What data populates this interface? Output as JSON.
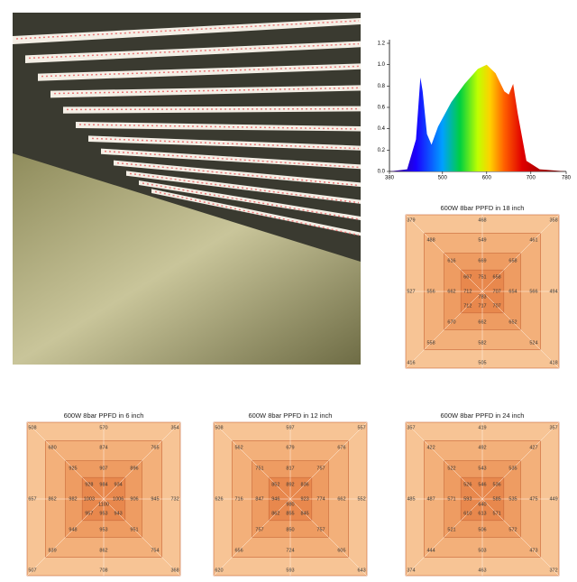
{
  "chart_data": {
    "type": "area",
    "x": [
      380,
      420,
      440,
      450,
      455,
      465,
      475,
      490,
      520,
      550,
      580,
      600,
      620,
      640,
      650,
      660,
      670,
      690,
      720,
      780
    ],
    "values": [
      0,
      0.02,
      0.3,
      0.88,
      0.75,
      0.35,
      0.25,
      0.42,
      0.65,
      0.82,
      0.96,
      1.0,
      0.92,
      0.75,
      0.72,
      0.82,
      0.55,
      0.1,
      0.02,
      0
    ],
    "xlim": [
      380,
      780
    ],
    "ylim": [
      0,
      1.2
    ],
    "xticks": [
      380,
      500,
      600,
      700,
      780
    ],
    "yticks": [
      {
        "value": 0,
        "label": "0.0"
      },
      {
        "value": 0.2,
        "label": "0.2"
      },
      {
        "value": 0.4,
        "label": "0.4"
      },
      {
        "value": 0.6,
        "label": "0.6"
      },
      {
        "value": 0.8,
        "label": "0.8"
      },
      {
        "value": 1,
        "label": "1.0"
      },
      {
        "value": 1.2,
        "label": "1.2"
      }
    ]
  },
  "ppfd_maps": [
    {
      "title": "600W 8bar PPFD in 18 inch",
      "rings": [
        [
          379,
          468,
          358,
          527,
          494,
          416,
          505,
          418
        ],
        [
          488,
          549,
          461,
          556,
          566,
          558,
          582,
          524
        ],
        [
          616,
          669,
          658,
          662,
          654,
          670,
          662,
          652
        ],
        [
          667,
          751,
          658,
          712,
          707,
          712,
          717,
          707
        ]
      ],
      "center": 783
    },
    {
      "title": "600W 8bar PPFD in 6 inch",
      "rings": [
        [
          508,
          570,
          354,
          657,
          732,
          507,
          708,
          368
        ],
        [
          680,
          874,
          765,
          862,
          945,
          839,
          862,
          754
        ],
        [
          925,
          907,
          896,
          982,
          906,
          948,
          953,
          951
        ],
        [
          928,
          984,
          934,
          1003,
          1006,
          957,
          953,
          943
        ]
      ],
      "center": 1100
    },
    {
      "title": "600W 8bar PPFD in 12 inch",
      "rings": [
        [
          508,
          597,
          557,
          626,
          552,
          620,
          593,
          643
        ],
        [
          562,
          679,
          676,
          716,
          662,
          656,
          724,
          605
        ],
        [
          751,
          817,
          757,
          847,
          774,
          757,
          850,
          757
        ],
        [
          852,
          892,
          836,
          946,
          923,
          862,
          855,
          845
        ]
      ],
      "center": 980
    },
    {
      "title": "600W 8bar PPFD in 24 inch",
      "rings": [
        [
          357,
          419,
          357,
          485,
          449,
          374,
          463,
          372
        ],
        [
          422,
          492,
          427,
          487,
          475,
          444,
          503,
          473
        ],
        [
          522,
          543,
          535,
          571,
          535,
          521,
          506,
          572
        ],
        [
          526,
          546,
          536,
          593,
          585,
          610,
          613,
          571
        ]
      ],
      "center": 640
    }
  ]
}
